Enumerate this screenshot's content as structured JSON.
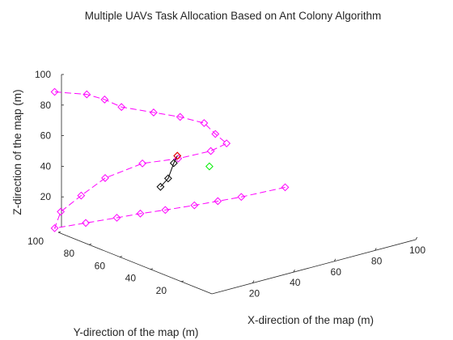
{
  "chart_data": {
    "type": "scatter",
    "title": "Multiple UAVs Task Allocation Based on Ant Colony Algorithm",
    "xlabel": "X-direction of the map (m)",
    "ylabel": "Y-direction of the map (m)",
    "zlabel": "Z-direction of the map (m)",
    "xlim": [
      0,
      100
    ],
    "ylim": [
      0,
      100
    ],
    "zlim": [
      0,
      100
    ],
    "xticks": [
      "20",
      "40",
      "60",
      "80",
      "100"
    ],
    "yticks": [
      "20",
      "40",
      "60",
      "80",
      "100"
    ],
    "zticks": [
      "20",
      "40",
      "60",
      "80",
      "100"
    ],
    "grid": false,
    "series": [
      {
        "color": "#ff00ff",
        "marker": "diamond",
        "line": "dashed",
        "points": [
          [
            100,
            85,
            0
          ],
          [
            80,
            87,
            0
          ],
          [
            70,
            89,
            0
          ],
          [
            60,
            91,
            0
          ],
          [
            48,
            94,
            0
          ],
          [
            38,
            97,
            0
          ],
          [
            28,
            99,
            0
          ],
          [
            15,
            102,
            0
          ],
          [
            2,
            105,
            0
          ],
          [
            5,
            105,
            10
          ],
          [
            12,
            101,
            20
          ],
          [
            20,
            96,
            31
          ],
          [
            33,
            89,
            39
          ],
          [
            46,
            83,
            40
          ],
          [
            59,
            79,
            42
          ],
          [
            66,
            78,
            45
          ],
          [
            62,
            80,
            52
          ],
          [
            58,
            82,
            60
          ],
          [
            50,
            87,
            65
          ],
          [
            40,
            91,
            70
          ],
          [
            28,
            96,
            76
          ],
          [
            22,
            99,
            82
          ],
          [
            14,
            100,
            88
          ],
          [
            2,
            105,
            92
          ]
        ]
      },
      {
        "color": "#000000",
        "marker": "diamond",
        "line": "solid",
        "points": [
          [
            20,
            60,
            40
          ],
          [
            23,
            59,
            45
          ],
          [
            25,
            58,
            55
          ],
          [
            26,
            57,
            60
          ]
        ]
      },
      {
        "color": "#ff0000",
        "marker": "diamond",
        "line": "none",
        "points": [
          [
            26,
            57,
            60
          ]
        ]
      },
      {
        "color": "#00ee00",
        "marker": "diamond",
        "line": "none",
        "points": [
          [
            44,
            60,
            45
          ]
        ]
      }
    ]
  }
}
